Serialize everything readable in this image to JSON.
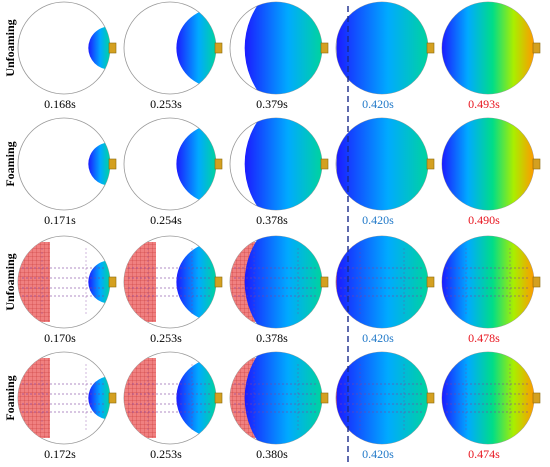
{
  "rows": [
    {
      "label": "Unfoaming",
      "inserts": false,
      "frames": [
        {
          "time": "0.168s",
          "fill": 0.23,
          "highlight": "none"
        },
        {
          "time": "0.253s",
          "fill": 0.42,
          "highlight": "none"
        },
        {
          "time": "0.379s",
          "fill": 0.82,
          "highlight": "none"
        },
        {
          "time": "0.420s",
          "fill": 0.97,
          "highlight": "blue"
        },
        {
          "time": "0.493s",
          "fill": 1.0,
          "highlight": "red"
        }
      ]
    },
    {
      "label": "Foaming",
      "inserts": false,
      "frames": [
        {
          "time": "0.171s",
          "fill": 0.23,
          "highlight": "none"
        },
        {
          "time": "0.254s",
          "fill": 0.42,
          "highlight": "none"
        },
        {
          "time": "0.378s",
          "fill": 0.82,
          "highlight": "none"
        },
        {
          "time": "0.420s",
          "fill": 0.97,
          "highlight": "blue"
        },
        {
          "time": "0.490s",
          "fill": 1.0,
          "highlight": "red"
        }
      ]
    },
    {
      "label": "Unfoaming",
      "inserts": true,
      "frames": [
        {
          "time": "0.170s",
          "fill": 0.23,
          "highlight": "none"
        },
        {
          "time": "0.253s",
          "fill": 0.42,
          "highlight": "none"
        },
        {
          "time": "0.378s",
          "fill": 0.82,
          "highlight": "none"
        },
        {
          "time": "0.420s",
          "fill": 0.97,
          "highlight": "blue"
        },
        {
          "time": "0.478s",
          "fill": 1.0,
          "highlight": "red"
        }
      ]
    },
    {
      "label": "Foaming",
      "inserts": true,
      "frames": [
        {
          "time": "0.172s",
          "fill": 0.23,
          "highlight": "none"
        },
        {
          "time": "0.253s",
          "fill": 0.42,
          "highlight": "none"
        },
        {
          "time": "0.380s",
          "fill": 0.82,
          "highlight": "none"
        },
        {
          "time": "0.420s",
          "fill": 0.97,
          "highlight": "blue"
        },
        {
          "time": "0.474s",
          "fill": 1.0,
          "highlight": "red"
        }
      ]
    }
  ],
  "colors": {
    "text": "#000000",
    "highlight_blue": "#1f78c8",
    "highlight_red": "#e8141e",
    "divider": "#1a2a8c",
    "insert_fill": "#f08080",
    "insert_grid": "#c23030",
    "outline": "#999999",
    "gate": "#d4a020",
    "cold": "#1b1bff",
    "hot": "#ff9900"
  }
}
